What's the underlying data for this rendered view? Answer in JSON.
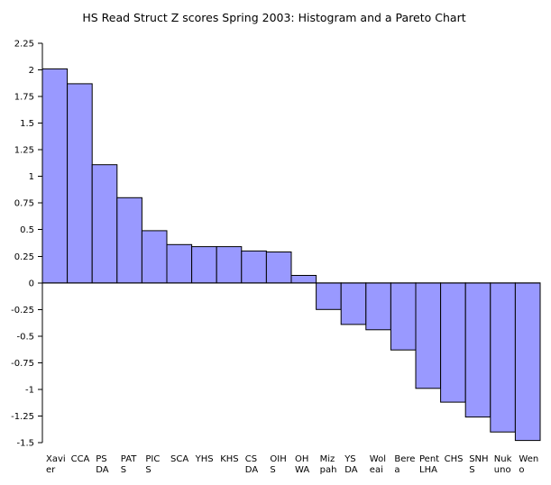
{
  "chart_data": {
    "type": "bar",
    "title": "HS Read Struct Z scores Spring 2003: Histogram and a Pareto Chart",
    "xlabel": "",
    "ylabel": "",
    "ylim": [
      -1.5,
      2.25
    ],
    "yticks": [
      "2.25",
      "2",
      "1.75",
      "1.5",
      "1.25",
      "1",
      "0.75",
      "0.5",
      "0.25",
      "0",
      "-0.25",
      "-0.5",
      "-0.75",
      "-1",
      "-1.25",
      "-1.5"
    ],
    "grid": false,
    "categories": [
      [
        "Xavi",
        "er"
      ],
      [
        "CCA"
      ],
      [
        "PS",
        "DA"
      ],
      [
        "PAT",
        "S"
      ],
      [
        "PIC",
        "S"
      ],
      [
        "SCA"
      ],
      [
        "YHS"
      ],
      [
        "KHS"
      ],
      [
        "CS",
        "DA"
      ],
      [
        "OIH",
        "S"
      ],
      [
        "OH",
        "WA"
      ],
      [
        "Miz",
        "pah"
      ],
      [
        "YS",
        "DA"
      ],
      [
        "Wol",
        "eai"
      ],
      [
        "Bere",
        "a"
      ],
      [
        "Pent",
        "LHA"
      ],
      [
        "CHS"
      ],
      [
        "SNH",
        "S"
      ],
      [
        "Nuk",
        "uno"
      ],
      [
        "Wen",
        "o"
      ]
    ],
    "values": [
      2.01,
      1.87,
      1.11,
      0.8,
      0.49,
      0.36,
      0.34,
      0.34,
      0.3,
      0.29,
      0.07,
      -0.25,
      -0.39,
      -0.44,
      -0.63,
      -0.99,
      -1.12,
      -1.26,
      -1.4,
      -1.48
    ],
    "bar_color": "#9999ff"
  }
}
